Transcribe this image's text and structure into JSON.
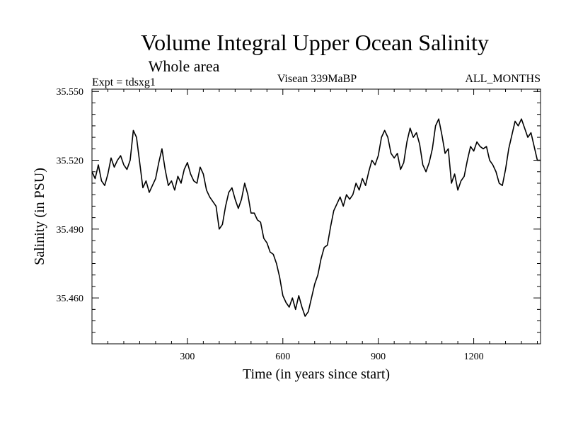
{
  "chart_data": {
    "type": "line",
    "title": "Volume Integral Upper Ocean Salinity",
    "subtitle": "Whole area",
    "experiment_label": "Expt = tdsxg1",
    "period_label": "Visean 339MaBP",
    "months_label": "ALL_MONTHS",
    "xlabel": "Time (in years since start)",
    "ylabel": "Salinity (in PSU)",
    "xlim": [
      0,
      1410
    ],
    "ylim": [
      35.44,
      35.551
    ],
    "x_ticks": [
      300,
      600,
      900,
      1200
    ],
    "x_tick_labels": [
      "300",
      "600",
      "900",
      "1200"
    ],
    "y_ticks": [
      35.46,
      35.49,
      35.52,
      35.55
    ],
    "y_tick_labels": [
      "35.460",
      "35.490",
      "35.520",
      "35.550"
    ],
    "grid": false,
    "series": [
      {
        "name": "Salinity",
        "color": "#000000",
        "x": [
          0,
          10,
          20,
          30,
          40,
          50,
          60,
          70,
          80,
          90,
          100,
          110,
          120,
          130,
          140,
          150,
          160,
          170,
          180,
          190,
          200,
          210,
          220,
          230,
          240,
          250,
          260,
          270,
          280,
          290,
          300,
          310,
          320,
          330,
          340,
          350,
          360,
          370,
          380,
          390,
          400,
          410,
          420,
          430,
          440,
          450,
          460,
          470,
          480,
          490,
          500,
          510,
          520,
          530,
          540,
          550,
          560,
          570,
          580,
          590,
          600,
          610,
          620,
          630,
          640,
          650,
          660,
          670,
          680,
          690,
          700,
          710,
          720,
          730,
          740,
          750,
          760,
          770,
          780,
          790,
          800,
          810,
          820,
          830,
          840,
          850,
          860,
          870,
          880,
          890,
          900,
          910,
          920,
          930,
          940,
          950,
          960,
          970,
          980,
          990,
          1000,
          1010,
          1020,
          1030,
          1040,
          1050,
          1060,
          1070,
          1080,
          1090,
          1100,
          1110,
          1120,
          1130,
          1140,
          1150,
          1160,
          1170,
          1180,
          1190,
          1200,
          1210,
          1220,
          1230,
          1240,
          1250,
          1260,
          1270,
          1280,
          1290,
          1300,
          1310,
          1320,
          1330,
          1340,
          1350,
          1360,
          1370,
          1380,
          1390,
          1400,
          1410
        ],
        "values": [
          35.515,
          35.512,
          35.518,
          35.511,
          35.509,
          35.514,
          35.521,
          35.517,
          35.52,
          35.522,
          35.518,
          35.516,
          35.52,
          35.533,
          35.53,
          35.519,
          35.508,
          35.511,
          35.506,
          35.509,
          35.512,
          35.519,
          35.525,
          35.516,
          35.509,
          35.511,
          35.507,
          35.513,
          35.51,
          35.516,
          35.519,
          35.514,
          35.511,
          35.51,
          35.517,
          35.514,
          35.507,
          35.504,
          35.502,
          35.5,
          35.49,
          35.492,
          35.5,
          35.506,
          35.508,
          35.503,
          35.499,
          35.503,
          35.51,
          35.505,
          35.497,
          35.497,
          35.494,
          35.493,
          35.486,
          35.484,
          35.48,
          35.479,
          35.475,
          35.469,
          35.461,
          35.458,
          35.456,
          35.46,
          35.455,
          35.461,
          35.456,
          35.452,
          35.454,
          35.46,
          35.466,
          35.47,
          35.477,
          35.482,
          35.483,
          35.491,
          35.498,
          35.501,
          35.504,
          35.5,
          35.505,
          35.503,
          35.505,
          35.51,
          35.507,
          35.512,
          35.509,
          35.515,
          35.52,
          35.518,
          35.522,
          35.53,
          35.533,
          35.53,
          35.523,
          35.521,
          35.523,
          35.516,
          35.519,
          35.528,
          35.534,
          35.53,
          35.532,
          35.527,
          35.518,
          35.515,
          35.519,
          35.525,
          35.535,
          35.538,
          35.531,
          35.523,
          35.525,
          35.51,
          35.514,
          35.507,
          35.511,
          35.513,
          35.52,
          35.526,
          35.524,
          35.528,
          35.526,
          35.525,
          35.526,
          35.52,
          35.518,
          35.515,
          35.51,
          35.509,
          35.516,
          35.525,
          35.531,
          35.537,
          35.535,
          35.538,
          35.534,
          35.53,
          35.532,
          35.526,
          35.52,
          35.52
        ]
      }
    ]
  }
}
